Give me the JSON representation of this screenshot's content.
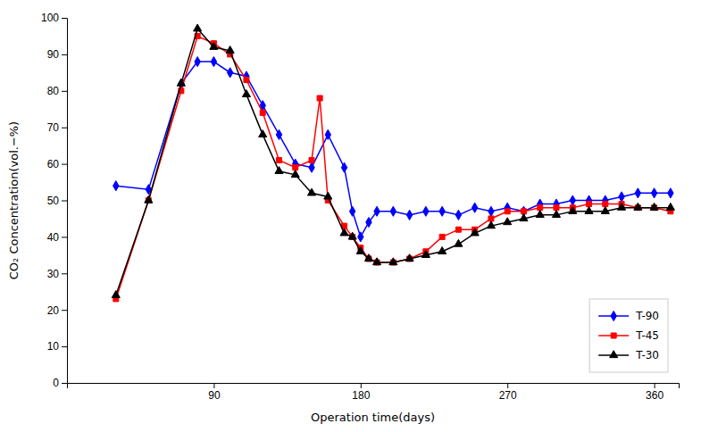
{
  "chart_data": {
    "type": "line",
    "xlabel": "Operation time(days)",
    "ylabel": "CO₂  Concentration(vol.−%)",
    "xlim": [
      0,
      375
    ],
    "ylim": [
      0,
      100
    ],
    "xticks": [
      90,
      180,
      270,
      360
    ],
    "yticks": [
      0,
      10,
      20,
      30,
      40,
      50,
      60,
      70,
      80,
      90,
      100
    ],
    "grid": false,
    "legend": "lower right",
    "series": [
      {
        "name": "T-90",
        "color": "#0000ff",
        "marker": "diamond",
        "x": [
          30,
          50,
          70,
          80,
          90,
          100,
          110,
          120,
          130,
          140,
          150,
          160,
          170,
          175,
          180,
          185,
          190,
          200,
          210,
          220,
          230,
          240,
          250,
          260,
          270,
          280,
          290,
          300,
          310,
          320,
          330,
          340,
          350,
          360,
          370
        ],
        "values": [
          54,
          53,
          82,
          88,
          88,
          85,
          84,
          76,
          68,
          60,
          59,
          68,
          59,
          47,
          40,
          44,
          47,
          47,
          46,
          47,
          47,
          46,
          48,
          47,
          48,
          47,
          49,
          49,
          50,
          50,
          50,
          51,
          52,
          52,
          52
        ]
      },
      {
        "name": "T-45",
        "color": "#ff0000",
        "marker": "square",
        "x": [
          30,
          50,
          70,
          80,
          90,
          100,
          110,
          120,
          130,
          140,
          150,
          155,
          160,
          170,
          175,
          180,
          185,
          190,
          200,
          210,
          220,
          230,
          240,
          250,
          260,
          270,
          280,
          290,
          300,
          310,
          320,
          330,
          340,
          350,
          360,
          370
        ],
        "values": [
          23,
          50,
          80,
          95,
          93,
          90,
          83,
          74,
          61,
          59,
          61,
          78,
          50,
          43,
          40,
          37,
          34,
          33,
          33,
          34,
          36,
          40,
          42,
          42,
          45,
          47,
          47,
          48,
          48,
          48,
          49,
          49,
          49,
          48,
          48,
          47
        ]
      },
      {
        "name": "T-30",
        "color": "#000000",
        "marker": "triangle",
        "x": [
          30,
          50,
          70,
          80,
          90,
          100,
          110,
          120,
          130,
          140,
          150,
          160,
          170,
          175,
          180,
          185,
          190,
          200,
          210,
          220,
          230,
          240,
          250,
          260,
          270,
          280,
          290,
          300,
          310,
          320,
          330,
          340,
          350,
          360,
          370
        ],
        "values": [
          24,
          50,
          82,
          97,
          92,
          91,
          79,
          68,
          58,
          57,
          52,
          51,
          41,
          40,
          36,
          34,
          33,
          33,
          34,
          35,
          36,
          38,
          41,
          43,
          44,
          45,
          46,
          46,
          47,
          47,
          47,
          48,
          48,
          48,
          48
        ]
      }
    ]
  }
}
